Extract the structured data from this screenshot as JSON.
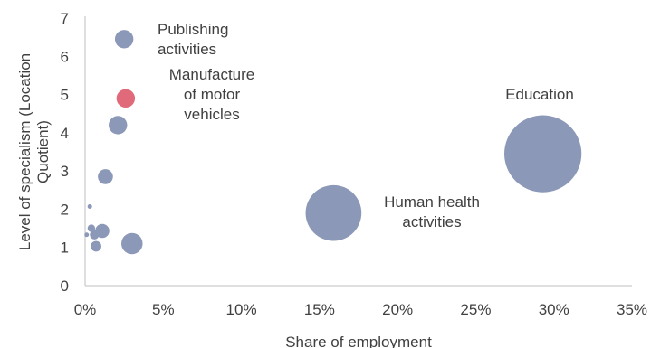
{
  "chart_data": {
    "type": "scatter",
    "subtype": "bubble",
    "xlabel": "Share of employment",
    "ylabel_lines": [
      "Level of specialism (Location",
      "Quotient)"
    ],
    "x_ticks": [
      "0%",
      "5%",
      "10%",
      "15%",
      "20%",
      "25%",
      "30%",
      "35%"
    ],
    "y_ticks": [
      "0",
      "1",
      "2",
      "3",
      "4",
      "5",
      "6",
      "7"
    ],
    "xlim": [
      0,
      0.35
    ],
    "ylim": [
      0,
      7
    ],
    "grid": false,
    "colors": {
      "default": "#8c98b8",
      "highlight": "#e0697a",
      "axis": "#bfbfbf",
      "text": "#404040"
    },
    "points": [
      {
        "x": 0.025,
        "y": 6.45,
        "size": 1.2,
        "color": "default"
      },
      {
        "x": 0.026,
        "y": 4.9,
        "size": 1.2,
        "color": "highlight"
      },
      {
        "x": 0.021,
        "y": 4.2,
        "size": 1.2,
        "color": "default"
      },
      {
        "x": 0.013,
        "y": 2.85,
        "size": 0.8,
        "color": "default"
      },
      {
        "x": 0.003,
        "y": 2.07,
        "size": 0.05,
        "color": "default"
      },
      {
        "x": 0.004,
        "y": 1.5,
        "size": 0.2,
        "color": "default"
      },
      {
        "x": 0.011,
        "y": 1.43,
        "size": 0.7,
        "color": "default"
      },
      {
        "x": 0.006,
        "y": 1.33,
        "size": 0.3,
        "color": "default"
      },
      {
        "x": 0.001,
        "y": 1.33,
        "size": 0.02,
        "color": "default"
      },
      {
        "x": 0.007,
        "y": 1.03,
        "size": 0.4,
        "color": "default"
      },
      {
        "x": 0.03,
        "y": 1.1,
        "size": 1.6,
        "color": "default"
      },
      {
        "x": 0.159,
        "y": 1.9,
        "size": 11.0,
        "color": "default"
      },
      {
        "x": 0.293,
        "y": 3.45,
        "size": 21.0,
        "color": "default"
      }
    ],
    "annotations": [
      {
        "lines": [
          "Publishing",
          "activities"
        ]
      },
      {
        "lines": [
          "Manufacture",
          "of motor",
          "vehicles"
        ]
      },
      {
        "lines": [
          "Education"
        ]
      },
      {
        "lines": [
          "Human health",
          "activities"
        ]
      }
    ]
  }
}
